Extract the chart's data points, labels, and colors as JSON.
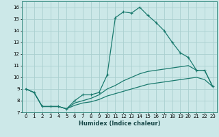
{
  "xlabel": "Humidex (Indice chaleur)",
  "ylabel": "",
  "bg_color": "#cce8e8",
  "line_color": "#1a7a6e",
  "grid_color": "#aacfcf",
  "xlim": [
    -0.5,
    23.5
  ],
  "ylim": [
    7,
    16.5
  ],
  "xticks": [
    0,
    1,
    2,
    3,
    4,
    5,
    6,
    7,
    8,
    9,
    10,
    11,
    12,
    13,
    14,
    15,
    16,
    17,
    18,
    19,
    20,
    21,
    22,
    23
  ],
  "yticks": [
    7,
    8,
    9,
    10,
    11,
    12,
    13,
    14,
    15,
    16
  ],
  "line1_x": [
    0,
    1,
    2,
    3,
    4,
    5,
    6,
    7,
    8,
    9,
    10,
    11,
    12,
    13,
    14,
    15,
    16,
    17,
    18,
    19,
    20,
    21,
    22,
    23
  ],
  "line1_y": [
    9.0,
    8.7,
    7.5,
    7.5,
    7.5,
    7.3,
    8.0,
    8.5,
    8.5,
    8.7,
    10.2,
    15.1,
    15.6,
    15.5,
    16.0,
    15.3,
    14.7,
    14.0,
    13.0,
    12.1,
    11.7,
    10.6,
    10.6,
    9.2
  ],
  "line2_x": [
    0,
    1,
    2,
    3,
    4,
    5,
    6,
    7,
    8,
    9,
    10,
    11,
    12,
    13,
    14,
    15,
    16,
    17,
    18,
    19,
    20,
    21,
    22,
    23
  ],
  "line2_y": [
    9.0,
    8.7,
    7.5,
    7.5,
    7.5,
    7.3,
    7.8,
    8.0,
    8.2,
    8.5,
    9.0,
    9.3,
    9.7,
    10.0,
    10.3,
    10.5,
    10.6,
    10.7,
    10.8,
    10.9,
    11.0,
    10.6,
    10.6,
    9.2
  ],
  "line3_x": [
    0,
    1,
    2,
    3,
    4,
    5,
    6,
    7,
    8,
    9,
    10,
    11,
    12,
    13,
    14,
    15,
    16,
    17,
    18,
    19,
    20,
    21,
    22,
    23
  ],
  "line3_y": [
    9.0,
    8.7,
    7.5,
    7.5,
    7.5,
    7.3,
    7.6,
    7.8,
    7.9,
    8.1,
    8.4,
    8.6,
    8.8,
    9.0,
    9.2,
    9.4,
    9.5,
    9.6,
    9.7,
    9.8,
    9.9,
    10.0,
    9.8,
    9.2
  ],
  "tick_fontsize": 5.0,
  "xlabel_fontsize": 6.0
}
